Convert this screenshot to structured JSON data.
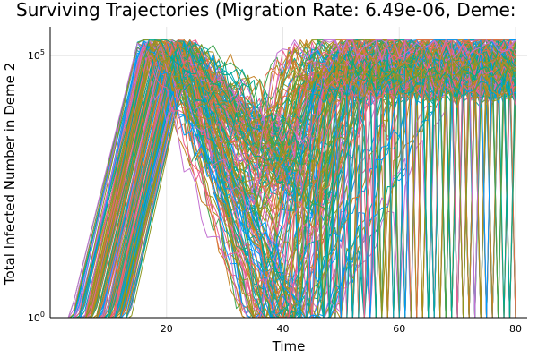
{
  "chart_data": {
    "type": "line",
    "title": "Surviving Trajectories (Migration Rate: 6.49e-06, Deme:",
    "xlabel": "Time",
    "ylabel": "Total Infected Number in Deme 2",
    "x_ticks": [
      20,
      40,
      60,
      80
    ],
    "y_ticks": [
      {
        "base": "10",
        "exp": "0",
        "value": 1
      },
      {
        "base": "10",
        "exp": "5",
        "value": 100000
      }
    ],
    "xlim": [
      0,
      82
    ],
    "ylim_log10": [
      0,
      5.55
    ],
    "y_scale": "log",
    "grid": true,
    "legend": "none",
    "approx_series_count": 180,
    "palette": [
      "#009AFA",
      "#E36F47",
      "#3EA44E",
      "#C371D2",
      "#AC8E18",
      "#00AAAE",
      "#ED5E93",
      "#C68225",
      "#00A98D",
      "#8E971E"
    ],
    "typical_trajectory": {
      "x": [
        5,
        10,
        15,
        20,
        25,
        30,
        35,
        40,
        45,
        50,
        55,
        60,
        65,
        70,
        75,
        80
      ],
      "y": [
        1,
        300,
        40000,
        300000,
        20000,
        3000,
        600,
        200,
        300,
        3000,
        50000,
        150000,
        200000,
        200000,
        180000,
        200000
      ]
    }
  }
}
